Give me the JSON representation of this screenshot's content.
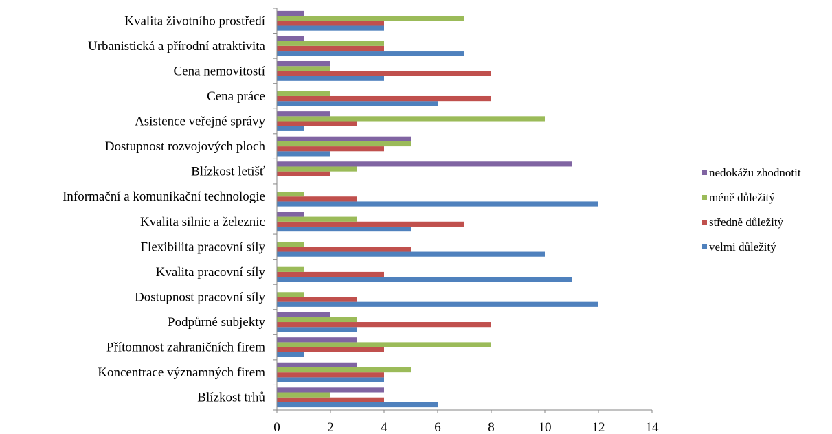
{
  "chart_data": {
    "type": "bar",
    "orientation": "horizontal",
    "categories": [
      "Blízkost trhů",
      "Koncentrace významných firem",
      "Přítomnost zahraničních firem",
      "Podpůrné subjekty",
      "Dostupnost pracovní síly",
      "Kvalita pracovní síly",
      "Flexibilita pracovní síly",
      "Kvalita silnic a železnic",
      "Informační a komunikační technologie",
      "Blízkost letišť",
      "Dostupnost rozvojových ploch",
      "Asistence veřejné správy",
      "Cena práce",
      "Cena nemovitostí",
      "Urbanistická a přírodní atraktivita",
      "Kvalita životního prostředí"
    ],
    "series": [
      {
        "name": "velmi důležitý",
        "color": "#4F81BD",
        "values": [
          6,
          4,
          1,
          3,
          12,
          11,
          10,
          5,
          12,
          0,
          2,
          1,
          6,
          4,
          7,
          4
        ]
      },
      {
        "name": "středně důležitý",
        "color": "#C0504D",
        "values": [
          4,
          4,
          4,
          8,
          3,
          4,
          5,
          7,
          3,
          2,
          4,
          3,
          8,
          8,
          4,
          4
        ]
      },
      {
        "name": "méně důležitý",
        "color": "#9BBB59",
        "values": [
          2,
          5,
          8,
          3,
          1,
          1,
          1,
          3,
          1,
          3,
          5,
          10,
          2,
          2,
          4,
          7
        ]
      },
      {
        "name": "nedokážu zhodnotit",
        "color": "#8064A2",
        "values": [
          4,
          3,
          3,
          2,
          0,
          0,
          0,
          1,
          0,
          11,
          5,
          2,
          0,
          2,
          1,
          1
        ]
      }
    ],
    "xlim": [
      0,
      14
    ],
    "xticks": [
      0,
      2,
      4,
      6,
      8,
      10,
      12,
      14
    ],
    "legend_order": [
      "nedokážu zhodnotit",
      "méně důležitý",
      "středně důležitý",
      "velmi důležitý"
    ],
    "legend_position": "right",
    "grid": false
  }
}
